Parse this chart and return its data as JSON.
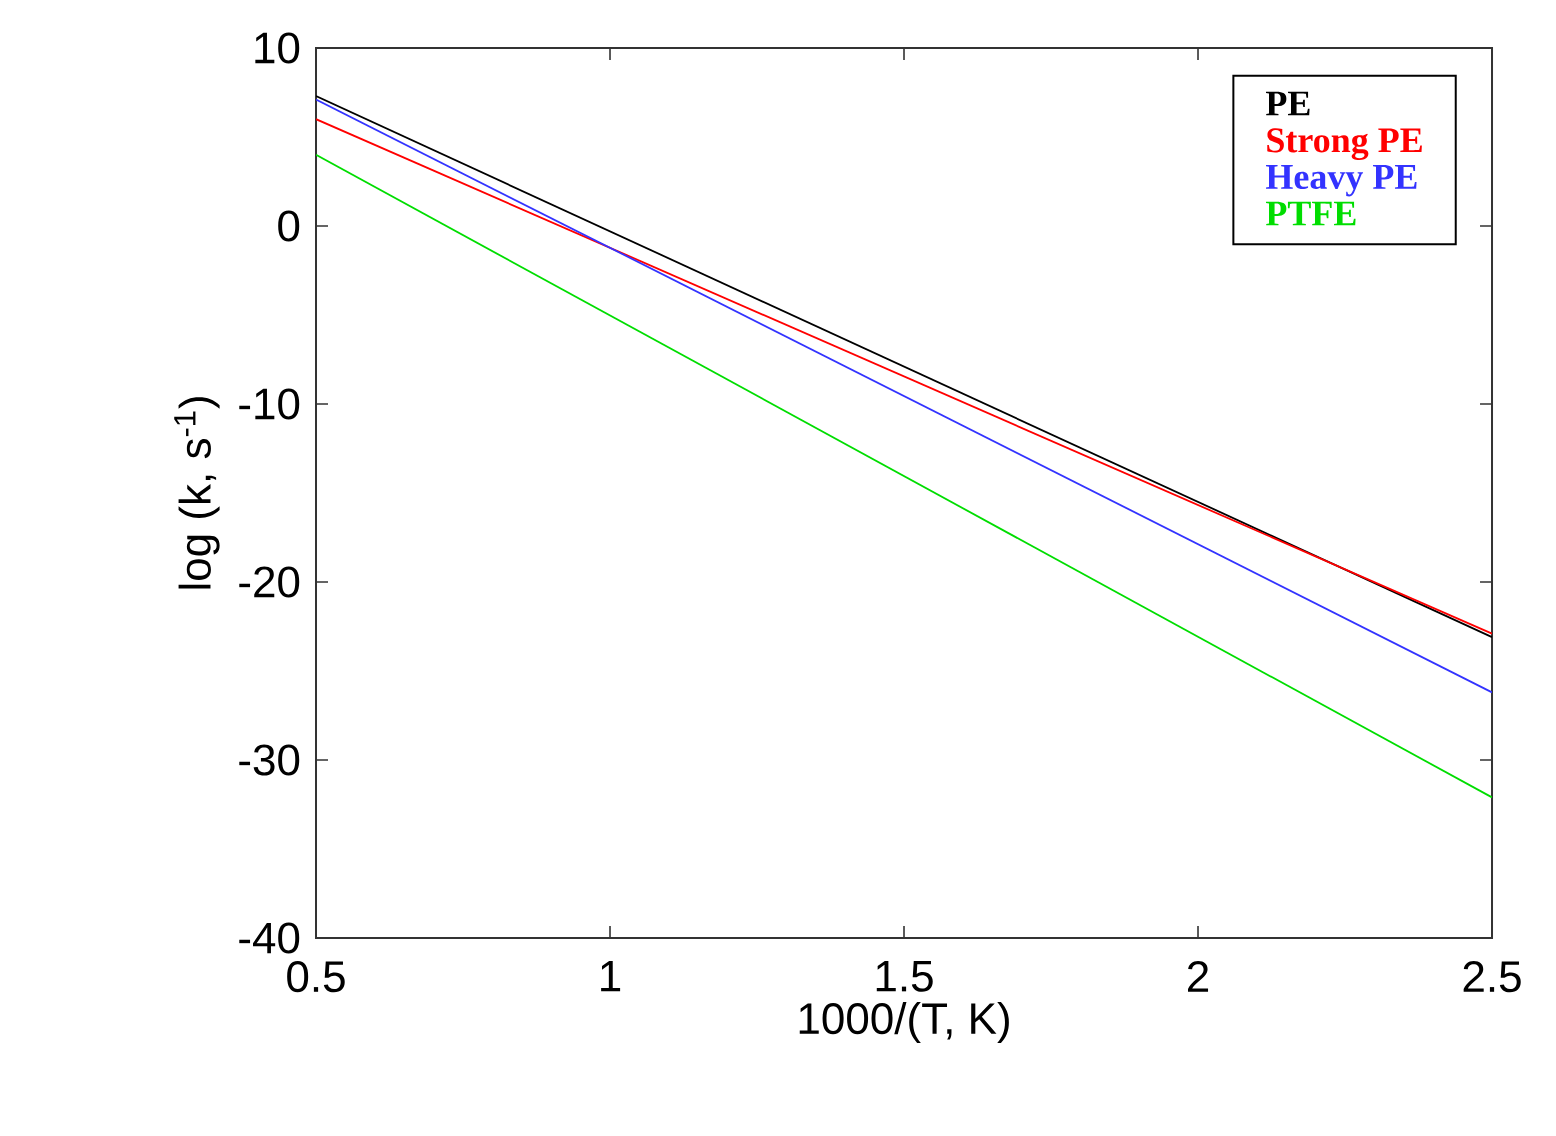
{
  "chart_data": {
    "type": "line",
    "xlabel": "1000/(T, K)",
    "ylabel": "log (k, s$^{-1}$)",
    "x": [
      0.5,
      2.5
    ],
    "series": [
      {
        "name": "PE",
        "color": "#000000",
        "values": [
          7.3,
          -23.1
        ]
      },
      {
        "name": "Strong PE",
        "color": "#ff0000",
        "values": [
          6.0,
          -22.9
        ]
      },
      {
        "name": "Heavy PE",
        "color": "#3333ff",
        "values": [
          7.1,
          -26.2
        ]
      },
      {
        "name": "PTFE",
        "color": "#00dd00",
        "values": [
          4.0,
          -32.1
        ]
      }
    ],
    "xlim": [
      0.5,
      2.5
    ],
    "ylim": [
      -40,
      10
    ],
    "xticks": [
      0.5,
      1,
      1.5,
      2,
      2.5
    ],
    "yticks": [
      -40,
      -30,
      -20,
      -10,
      0,
      10
    ],
    "legend": "top right",
    "grid": false,
    "marker": "none",
    "line_style": "solid"
  }
}
